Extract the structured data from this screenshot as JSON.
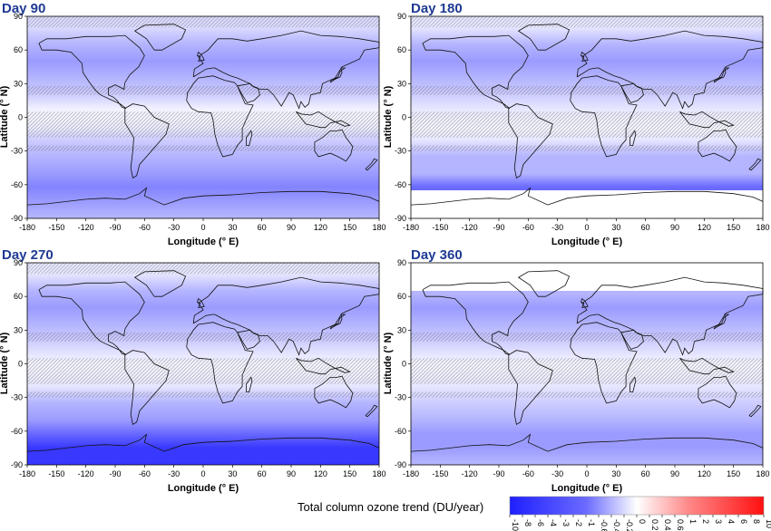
{
  "chart_data": [
    {
      "type": "heatmap",
      "title": "Day 90",
      "xlabel": "Longitude (° E)",
      "ylabel": "Latitude (° N)",
      "xlim": [
        -180,
        180
      ],
      "ylim": [
        -90,
        90
      ],
      "xticks": [
        -180,
        -150,
        -120,
        -90,
        -60,
        -30,
        0,
        30,
        60,
        90,
        120,
        150,
        180
      ],
      "yticks": [
        -90,
        -60,
        -30,
        0,
        30,
        60,
        90
      ],
      "lat_band_trend": [
        {
          "lat": 80,
          "trend": -1.5
        },
        {
          "lat": 65,
          "trend": -3
        },
        {
          "lat": 50,
          "trend": -4
        },
        {
          "lat": 35,
          "trend": -3
        },
        {
          "lat": 20,
          "trend": -2
        },
        {
          "lat": 8,
          "trend": -0.6
        },
        {
          "lat": 0,
          "trend": -0.4
        },
        {
          "lat": -10,
          "trend": -0.8
        },
        {
          "lat": -20,
          "trend": -2
        },
        {
          "lat": -35,
          "trend": -3
        },
        {
          "lat": -50,
          "trend": -4
        },
        {
          "lat": -62,
          "trend": -5
        },
        {
          "lat": -75,
          "trend": -4
        },
        {
          "lat": -88,
          "trend": -3
        }
      ],
      "missing_below_lat": null,
      "missing_above_lat": null
    },
    {
      "type": "heatmap",
      "title": "Day 180",
      "xlabel": "Longitude (° E)",
      "ylabel": "Latitude (° N)",
      "xlim": [
        -180,
        180
      ],
      "ylim": [
        -90,
        90
      ],
      "xticks": [
        -180,
        -150,
        -120,
        -90,
        -60,
        -30,
        0,
        30,
        60,
        90,
        120,
        150,
        180
      ],
      "yticks": [
        -90,
        -60,
        -30,
        0,
        30,
        60,
        90
      ],
      "lat_band_trend": [
        {
          "lat": 80,
          "trend": -1
        },
        {
          "lat": 65,
          "trend": -3
        },
        {
          "lat": 50,
          "trend": -4
        },
        {
          "lat": 35,
          "trend": -3
        },
        {
          "lat": 20,
          "trend": -2
        },
        {
          "lat": 8,
          "trend": -1
        },
        {
          "lat": 0,
          "trend": -0.6
        },
        {
          "lat": -10,
          "trend": -0.4
        },
        {
          "lat": -20,
          "trend": -1
        },
        {
          "lat": -35,
          "trend": -3
        },
        {
          "lat": -50,
          "trend": -3
        },
        {
          "lat": -62,
          "trend": -6
        }
      ],
      "missing_below_lat": -65,
      "missing_above_lat": null
    },
    {
      "type": "heatmap",
      "title": "Day 270",
      "xlabel": "Longitude (° E)",
      "ylabel": "Latitude (° N)",
      "xlim": [
        -180,
        180
      ],
      "ylim": [
        -90,
        90
      ],
      "xticks": [
        -180,
        -150,
        -120,
        -90,
        -60,
        -30,
        0,
        30,
        60,
        90,
        120,
        150,
        180
      ],
      "yticks": [
        -90,
        -60,
        -30,
        0,
        30,
        60,
        90
      ],
      "lat_band_trend": [
        {
          "lat": 80,
          "trend": -1
        },
        {
          "lat": 65,
          "trend": -3
        },
        {
          "lat": 50,
          "trend": -4
        },
        {
          "lat": 35,
          "trend": -3
        },
        {
          "lat": 20,
          "trend": -2
        },
        {
          "lat": 8,
          "trend": -1
        },
        {
          "lat": 0,
          "trend": -0.4
        },
        {
          "lat": -10,
          "trend": -0.6
        },
        {
          "lat": -20,
          "trend": -1
        },
        {
          "lat": -35,
          "trend": -3
        },
        {
          "lat": -50,
          "trend": -4
        },
        {
          "lat": -62,
          "trend": -6
        },
        {
          "lat": -75,
          "trend": -8
        },
        {
          "lat": -88,
          "trend": -8
        }
      ],
      "missing_below_lat": null,
      "missing_above_lat": null
    },
    {
      "type": "heatmap",
      "title": "Day 360",
      "xlabel": "Longitude (° E)",
      "ylabel": "Latitude (° N)",
      "xlim": [
        -180,
        180
      ],
      "ylim": [
        -90,
        90
      ],
      "xticks": [
        -180,
        -150,
        -120,
        -90,
        -60,
        -30,
        0,
        30,
        60,
        90,
        120,
        150,
        180
      ],
      "yticks": [
        -90,
        -60,
        -30,
        0,
        30,
        60,
        90
      ],
      "lat_band_trend": [
        {
          "lat": 62,
          "trend": -3
        },
        {
          "lat": 50,
          "trend": -4
        },
        {
          "lat": 35,
          "trend": -3
        },
        {
          "lat": 20,
          "trend": -2
        },
        {
          "lat": 8,
          "trend": -1
        },
        {
          "lat": 0,
          "trend": -0.4
        },
        {
          "lat": -10,
          "trend": -0.6
        },
        {
          "lat": -20,
          "trend": -1
        },
        {
          "lat": -35,
          "trend": -2
        },
        {
          "lat": -50,
          "trend": -3
        },
        {
          "lat": -62,
          "trend": -4
        },
        {
          "lat": -75,
          "trend": -4
        },
        {
          "lat": -88,
          "trend": -3
        }
      ],
      "missing_below_lat": null,
      "missing_above_lat": 65
    }
  ],
  "colorbar": {
    "title": "Total column ozone trend (DU/year)",
    "labels": [
      "-10",
      "-8",
      "-6",
      "-4",
      "-3",
      "-2",
      "-1",
      "-0.6",
      "-0.4",
      "-0.2",
      "0",
      "0.2",
      "0.4",
      "0.6",
      "1",
      "2",
      "3",
      "4",
      "6",
      "8",
      "10"
    ],
    "neg_color": "#1f1fff",
    "pos_color": "#ff1f1f",
    "neutral_color": "#ffffff"
  }
}
